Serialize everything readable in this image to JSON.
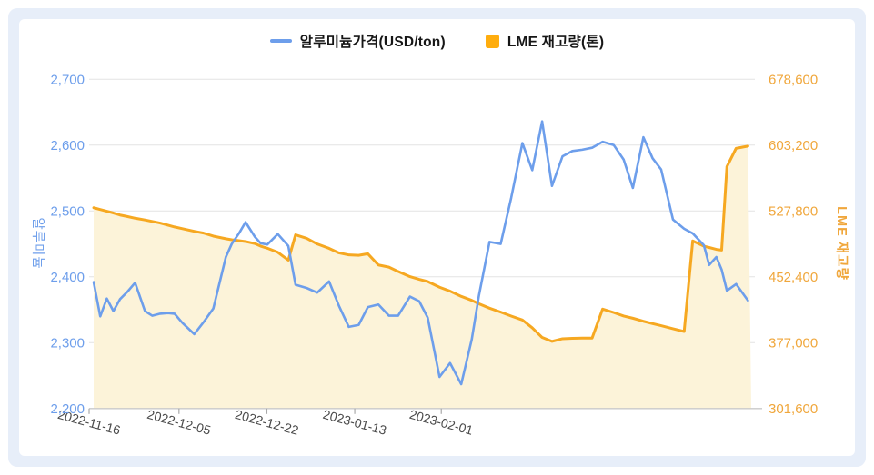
{
  "page": {
    "background": "#ffffff",
    "frame_color": "#e7eef9",
    "card_color": "#ffffff"
  },
  "legend": {
    "items": [
      {
        "label": "알루미늄가격(USD/ton)",
        "marker": "line",
        "color": "#6d9eeb"
      },
      {
        "label": "LME 재고량(톤)",
        "marker": "square",
        "color": "#ffad0e"
      }
    ]
  },
  "chart_data": {
    "type": "line",
    "title": "",
    "grid": {
      "show": true,
      "line_color": "#e3e3e3",
      "axis_line_color": "#c9c9c9",
      "tick_color": "#aaaaaa"
    },
    "x_axis": {
      "label_color": "#4a4a4a",
      "label_rotation_deg": 15,
      "tick_labels": [
        {
          "text": "2022-11-16",
          "pos": 0.0
        },
        {
          "text": "2022-12-05",
          "pos": 0.135
        },
        {
          "text": "2022-12-22",
          "pos": 0.267
        },
        {
          "text": "2023-01-13",
          "pos": 0.399
        },
        {
          "text": "2023-02-01",
          "pos": 0.529
        }
      ]
    },
    "left_axis": {
      "title": "알루미늄",
      "color": "#6d9eeb",
      "min": 2200,
      "max": 2700,
      "ticks": [
        {
          "value": 2200,
          "label": "2,200"
        },
        {
          "value": 2300,
          "label": "2,300"
        },
        {
          "value": 2400,
          "label": "2,400"
        },
        {
          "value": 2500,
          "label": "2,500"
        },
        {
          "value": 2600,
          "label": "2,600"
        },
        {
          "value": 2700,
          "label": "2,700"
        }
      ]
    },
    "right_axis": {
      "title": "LME 재고량",
      "color": "#f0a73c",
      "min": 301600,
      "max": 678600,
      "ticks": [
        {
          "value": 301600,
          "label": "301,600"
        },
        {
          "value": 377000,
          "label": "377,000"
        },
        {
          "value": 452400,
          "label": "452,400"
        },
        {
          "value": 527800,
          "label": "527,800"
        },
        {
          "value": 603200,
          "label": "603,200"
        },
        {
          "value": 678600,
          "label": "678,600"
        }
      ]
    },
    "series": [
      {
        "name": "알루미늄가격(USD/ton)",
        "yaxis": "left",
        "color": "#6d9eeb",
        "width": 2.6,
        "points": [
          [
            0.0,
            2392
          ],
          [
            0.01,
            2340
          ],
          [
            0.02,
            2367
          ],
          [
            0.03,
            2348
          ],
          [
            0.04,
            2366
          ],
          [
            0.051,
            2377
          ],
          [
            0.063,
            2391
          ],
          [
            0.078,
            2348
          ],
          [
            0.089,
            2341
          ],
          [
            0.101,
            2344
          ],
          [
            0.113,
            2345
          ],
          [
            0.123,
            2344
          ],
          [
            0.135,
            2330
          ],
          [
            0.153,
            2313
          ],
          [
            0.167,
            2331
          ],
          [
            0.182,
            2352
          ],
          [
            0.201,
            2430
          ],
          [
            0.21,
            2450
          ],
          [
            0.221,
            2466
          ],
          [
            0.231,
            2483
          ],
          [
            0.245,
            2461
          ],
          [
            0.254,
            2451
          ],
          [
            0.264,
            2449
          ],
          [
            0.28,
            2465
          ],
          [
            0.296,
            2447
          ],
          [
            0.307,
            2388
          ],
          [
            0.324,
            2383
          ],
          [
            0.34,
            2376
          ],
          [
            0.358,
            2393
          ],
          [
            0.373,
            2356
          ],
          [
            0.388,
            2324
          ],
          [
            0.403,
            2327
          ],
          [
            0.417,
            2354
          ],
          [
            0.433,
            2358
          ],
          [
            0.449,
            2341
          ],
          [
            0.463,
            2341
          ],
          [
            0.481,
            2370
          ],
          [
            0.495,
            2363
          ],
          [
            0.508,
            2338
          ],
          [
            0.526,
            2248
          ],
          [
            0.542,
            2269
          ],
          [
            0.559,
            2237
          ],
          [
            0.575,
            2305
          ],
          [
            0.586,
            2372
          ],
          [
            0.602,
            2453
          ],
          [
            0.619,
            2450
          ],
          [
            0.635,
            2520
          ],
          [
            0.652,
            2603
          ],
          [
            0.667,
            2562
          ],
          [
            0.682,
            2636
          ],
          [
            0.697,
            2538
          ],
          [
            0.713,
            2583
          ],
          [
            0.728,
            2591
          ],
          [
            0.743,
            2593
          ],
          [
            0.758,
            2596
          ],
          [
            0.774,
            2605
          ],
          [
            0.791,
            2600
          ],
          [
            0.806,
            2578
          ],
          [
            0.82,
            2535
          ],
          [
            0.836,
            2612
          ],
          [
            0.85,
            2580
          ],
          [
            0.863,
            2563
          ],
          [
            0.881,
            2487
          ],
          [
            0.898,
            2473
          ],
          [
            0.911,
            2466
          ],
          [
            0.928,
            2448
          ],
          [
            0.936,
            2418
          ],
          [
            0.947,
            2430
          ],
          [
            0.955,
            2411
          ],
          [
            0.963,
            2379
          ],
          [
            0.977,
            2389
          ],
          [
            0.995,
            2364
          ]
        ]
      },
      {
        "name": "LME 재고량(톤)",
        "yaxis": "right",
        "color": "#f6a821",
        "width": 3,
        "area_fill": "#fcf3d9",
        "points": [
          [
            0.0,
            531500
          ],
          [
            0.01,
            529500
          ],
          [
            0.02,
            527500
          ],
          [
            0.03,
            525500
          ],
          [
            0.04,
            523200
          ],
          [
            0.051,
            521500
          ],
          [
            0.063,
            519500
          ],
          [
            0.078,
            517500
          ],
          [
            0.089,
            515800
          ],
          [
            0.101,
            514000
          ],
          [
            0.113,
            511500
          ],
          [
            0.123,
            509500
          ],
          [
            0.135,
            507500
          ],
          [
            0.153,
            504500
          ],
          [
            0.167,
            502500
          ],
          [
            0.182,
            499000
          ],
          [
            0.201,
            496000
          ],
          [
            0.21,
            494800
          ],
          [
            0.221,
            493800
          ],
          [
            0.231,
            492800
          ],
          [
            0.245,
            490500
          ],
          [
            0.254,
            487500
          ],
          [
            0.264,
            485200
          ],
          [
            0.28,
            480500
          ],
          [
            0.296,
            471500
          ],
          [
            0.307,
            500500
          ],
          [
            0.324,
            496500
          ],
          [
            0.34,
            490000
          ],
          [
            0.358,
            485000
          ],
          [
            0.373,
            479800
          ],
          [
            0.388,
            477500
          ],
          [
            0.403,
            477000
          ],
          [
            0.417,
            478800
          ],
          [
            0.433,
            466000
          ],
          [
            0.449,
            463500
          ],
          [
            0.463,
            458500
          ],
          [
            0.481,
            452600
          ],
          [
            0.495,
            449500
          ],
          [
            0.508,
            447000
          ],
          [
            0.526,
            440500
          ],
          [
            0.542,
            436000
          ],
          [
            0.559,
            430000
          ],
          [
            0.575,
            425500
          ],
          [
            0.586,
            421500
          ],
          [
            0.602,
            416500
          ],
          [
            0.619,
            412000
          ],
          [
            0.635,
            407500
          ],
          [
            0.652,
            403000
          ],
          [
            0.667,
            394000
          ],
          [
            0.682,
            383000
          ],
          [
            0.697,
            378500
          ],
          [
            0.713,
            381500
          ],
          [
            0.728,
            382000
          ],
          [
            0.743,
            382300
          ],
          [
            0.758,
            382300
          ],
          [
            0.774,
            415500
          ],
          [
            0.791,
            411500
          ],
          [
            0.806,
            407500
          ],
          [
            0.82,
            405000
          ],
          [
            0.836,
            401500
          ],
          [
            0.85,
            398800
          ],
          [
            0.863,
            396500
          ],
          [
            0.881,
            393000
          ],
          [
            0.898,
            389800
          ],
          [
            0.911,
            493500
          ],
          [
            0.928,
            487500
          ],
          [
            0.936,
            486000
          ],
          [
            0.947,
            483800
          ],
          [
            0.955,
            483000
          ],
          [
            0.963,
            578500
          ],
          [
            0.977,
            599500
          ],
          [
            0.995,
            602100
          ]
        ]
      }
    ]
  }
}
